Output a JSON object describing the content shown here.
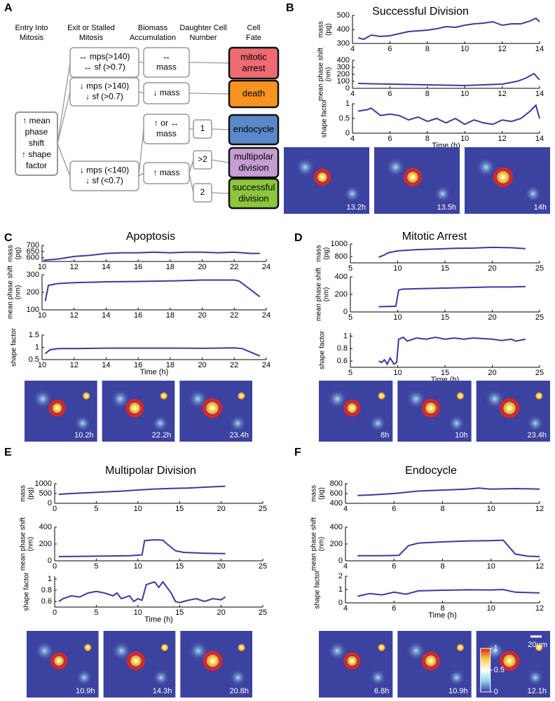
{
  "diagram": {
    "panel": "A",
    "headers": [
      [
        "Entry Into",
        "Mitosis"
      ],
      [
        "Exit or Stalled",
        "Mitosis"
      ],
      [
        "Biomass",
        "Accumulation"
      ],
      [
        "Daughter Cell",
        "Number"
      ],
      [
        "Cell",
        "Fate"
      ]
    ],
    "entry": [
      "↑ mean",
      "phase",
      "shift",
      "↑ shape",
      "factor"
    ],
    "exit": [
      [
        "↔ mps(>140)",
        "↔ sf (>0.7)"
      ],
      [
        "↓ mps (>140)",
        "↓ sf (>0.7)"
      ],
      [
        "↓ mps (<140)",
        "↓ sf (<0.7)"
      ]
    ],
    "biomass": [
      [
        "↔",
        "mass"
      ],
      [
        "↓ mass"
      ],
      [
        "↑ or ↔",
        "mass"
      ],
      [
        "↑ mass"
      ]
    ],
    "daughters": [
      "1",
      ">2",
      "2"
    ],
    "fates": [
      {
        "lines": [
          "mitotic",
          "arrest"
        ],
        "color": "#ee6b74"
      },
      {
        "lines": [
          "death"
        ],
        "color": "#f7931e"
      },
      {
        "lines": [
          "endocycle"
        ],
        "color": "#5b88c8"
      },
      {
        "lines": [
          "multipolar",
          "division"
        ],
        "color": "#c59fd4"
      },
      {
        "lines": [
          "successful",
          "division"
        ],
        "color": "#8cc63e"
      }
    ]
  },
  "chart_data": [
    {
      "type": "line",
      "panel": "B",
      "title": "Successful Division",
      "xlabel": "Time (h)",
      "color": "#3b3b9c",
      "xlim": [
        4,
        14
      ],
      "xticks": [
        4,
        6,
        8,
        10,
        12,
        14
      ],
      "images": [
        "13.2h",
        "13.5h",
        "14h"
      ],
      "subplots": [
        {
          "ylabel": [
            "mass",
            "(pg)"
          ],
          "ylim": [
            300,
            500
          ],
          "yticks": [
            300,
            400,
            500
          ],
          "x": [
            4.3,
            4.6,
            5,
            5.5,
            6,
            6.5,
            7,
            7.5,
            8,
            8.5,
            9,
            9.5,
            10,
            10.5,
            11,
            11.5,
            12,
            12.5,
            13,
            13.5,
            13.8,
            14
          ],
          "values": [
            340,
            330,
            360,
            350,
            355,
            370,
            385,
            390,
            395,
            405,
            420,
            415,
            430,
            440,
            445,
            455,
            430,
            440,
            440,
            460,
            480,
            455
          ]
        },
        {
          "ylabel": [
            "mean phase shift",
            "(nm)"
          ],
          "ylim": [
            0,
            400
          ],
          "yticks": [
            0,
            100,
            200,
            300,
            400
          ],
          "x": [
            4.3,
            5,
            6,
            7,
            8,
            9,
            10,
            11,
            12,
            12.8,
            13.3,
            13.7,
            14
          ],
          "values": [
            70,
            65,
            60,
            55,
            50,
            45,
            40,
            50,
            60,
            100,
            150,
            210,
            120
          ]
        },
        {
          "ylabel": [
            "shape factor"
          ],
          "ylim": [
            0,
            1
          ],
          "yticks": [
            0,
            0.5,
            1
          ],
          "x": [
            4.3,
            4.8,
            5,
            5.5,
            6,
            6.5,
            7,
            7.5,
            8,
            8.5,
            9,
            9.5,
            10,
            10.5,
            11,
            11.5,
            12,
            12.5,
            13,
            13.5,
            13.8,
            14
          ],
          "values": [
            0.75,
            0.8,
            0.85,
            0.6,
            0.65,
            0.6,
            0.45,
            0.55,
            0.4,
            0.5,
            0.35,
            0.5,
            0.3,
            0.45,
            0.35,
            0.3,
            0.45,
            0.4,
            0.5,
            0.75,
            0.95,
            0.5
          ]
        }
      ]
    },
    {
      "type": "line",
      "panel": "C",
      "title": "Apoptosis",
      "xlabel": "Time (h)",
      "color": "#3b3b9c",
      "xlim": [
        10,
        24
      ],
      "xticks": [
        10,
        12,
        14,
        16,
        18,
        20,
        22,
        24
      ],
      "images": [
        "10.2h",
        "22.2h",
        "23.4h"
      ],
      "subplots": [
        {
          "ylabel": [
            "mass",
            "(pg)"
          ],
          "ylim": [
            570,
            700
          ],
          "yticks": [
            600,
            650,
            700
          ],
          "x": [
            10.1,
            11,
            12,
            13,
            14,
            15,
            16,
            17,
            18,
            19,
            20,
            21,
            22,
            23,
            23.6
          ],
          "values": [
            580,
            590,
            610,
            620,
            635,
            640,
            640,
            645,
            640,
            645,
            645,
            640,
            645,
            635,
            635
          ]
        },
        {
          "ylabel": [
            "mean phase shift",
            "(nm)"
          ],
          "ylim": [
            100,
            300
          ],
          "yticks": [
            100,
            200,
            300
          ],
          "x": [
            10.2,
            10.4,
            11,
            12,
            14,
            16,
            18,
            20,
            22,
            22.3,
            23.6
          ],
          "values": [
            150,
            240,
            250,
            255,
            260,
            262,
            265,
            270,
            270,
            265,
            175
          ]
        },
        {
          "ylabel": [
            "shape factor"
          ],
          "ylim": [
            0.5,
            1.5
          ],
          "yticks": [
            0.5,
            1,
            1.5
          ],
          "x": [
            10.2,
            10.5,
            11,
            12,
            14,
            16,
            18,
            20,
            22,
            22.5,
            23.6
          ],
          "values": [
            0.75,
            0.9,
            0.95,
            0.95,
            0.97,
            0.97,
            0.97,
            0.96,
            0.98,
            0.95,
            0.65
          ]
        }
      ]
    },
    {
      "type": "line",
      "panel": "D",
      "title": "Mitotic Arrest",
      "xlabel": "Time (h)",
      "color": "#3b3b9c",
      "xlim": [
        5,
        25
      ],
      "xticks": [
        5,
        10,
        15,
        20,
        25
      ],
      "images": [
        "8h",
        "10h",
        "23.4h"
      ],
      "subplots": [
        {
          "ylabel": [
            "mass",
            "(pg)"
          ],
          "ylim": [
            700,
            1000
          ],
          "yticks": [
            800,
            1000
          ],
          "x": [
            8,
            8.5,
            9,
            10,
            11,
            12,
            14,
            16,
            18,
            20,
            22,
            23.5
          ],
          "values": [
            790,
            820,
            860,
            890,
            900,
            910,
            920,
            930,
            935,
            945,
            940,
            925
          ]
        },
        {
          "ylabel": [
            "mean phase shift",
            "(nm)"
          ],
          "ylim": [
            0,
            400
          ],
          "yticks": [
            0,
            200,
            400
          ],
          "x": [
            8,
            9.8,
            10.1,
            10.5,
            12,
            14,
            16,
            18,
            20,
            22,
            23.5
          ],
          "values": [
            60,
            65,
            250,
            260,
            265,
            270,
            275,
            280,
            285,
            285,
            290
          ]
        },
        {
          "ylabel": [
            "shape factor"
          ],
          "ylim": [
            0.5,
            1.05
          ],
          "yticks": [
            0.6,
            0.8,
            1
          ],
          "x": [
            8,
            8.3,
            8.6,
            8.9,
            9.2,
            9.6,
            9.9,
            10.1,
            10.6,
            11,
            12,
            13,
            14,
            15,
            16,
            17,
            18,
            19,
            20,
            21,
            22,
            22.5,
            23.5
          ],
          "values": [
            0.6,
            0.58,
            0.62,
            0.55,
            0.65,
            0.55,
            0.58,
            0.95,
            0.98,
            0.92,
            0.97,
            0.95,
            0.98,
            0.95,
            0.97,
            0.95,
            0.97,
            0.96,
            0.95,
            0.93,
            0.95,
            0.92,
            0.95
          ]
        }
      ]
    },
    {
      "type": "line",
      "panel": "E",
      "title": "Multipolar Division",
      "xlabel": "Time (h)",
      "color": "#3b3b9c",
      "xlim": [
        0,
        25
      ],
      "xticks": [
        0,
        5,
        10,
        15,
        20,
        25
      ],
      "images": [
        "10.9h",
        "14.3h",
        "20.8h"
      ],
      "subplots": [
        {
          "ylabel": [
            "mass",
            "(pg)"
          ],
          "ylim": [
            0,
            1000
          ],
          "yticks": [
            0,
            500,
            1000
          ],
          "x": [
            0.5,
            2,
            4,
            6,
            8,
            10,
            12,
            14,
            16,
            18,
            20.5
          ],
          "values": [
            460,
            500,
            540,
            580,
            620,
            680,
            730,
            760,
            780,
            820,
            870
          ]
        },
        {
          "ylabel": [
            "mean phase shift",
            "(nm)"
          ],
          "ylim": [
            0,
            400
          ],
          "yticks": [
            0,
            200,
            400
          ],
          "x": [
            0.5,
            5,
            9,
            10.5,
            10.8,
            12,
            13,
            13.5,
            14.5,
            15.5,
            18,
            20.5
          ],
          "values": [
            50,
            55,
            60,
            70,
            240,
            250,
            245,
            200,
            120,
            100,
            90,
            85
          ]
        },
        {
          "ylabel": [
            "shape factor"
          ],
          "ylim": [
            0.5,
            1.05
          ],
          "yticks": [
            0.6,
            0.8,
            1
          ],
          "x": [
            0.5,
            1,
            2,
            3,
            4,
            5,
            6,
            7,
            7.5,
            8,
            9,
            9.5,
            10,
            10.5,
            11,
            12,
            12.5,
            13,
            13.5,
            14,
            14.5,
            15,
            16,
            17,
            18,
            19,
            20,
            20.5
          ],
          "values": [
            0.6,
            0.65,
            0.7,
            0.68,
            0.75,
            0.78,
            0.75,
            0.7,
            0.75,
            0.65,
            0.7,
            0.6,
            0.65,
            0.62,
            0.9,
            0.95,
            0.85,
            0.95,
            0.85,
            0.75,
            0.6,
            0.58,
            0.62,
            0.65,
            0.6,
            0.65,
            0.63,
            0.68
          ]
        }
      ]
    },
    {
      "type": "line",
      "panel": "F",
      "title": "Endocycle",
      "xlabel": "Time (h)",
      "color": "#3b3b9c",
      "xlim": [
        4,
        12
      ],
      "xticks": [
        4,
        6,
        8,
        10,
        12
      ],
      "images": [
        "6.8h",
        "10.9h",
        "12.1h"
      ],
      "scale_bar": "20µm",
      "colorbar_ticks": [
        0,
        0.5,
        1
      ],
      "subplots": [
        {
          "ylabel": [
            "mass",
            "(pg)"
          ],
          "ylim": [
            400,
            800
          ],
          "yticks": [
            400,
            600,
            800
          ],
          "x": [
            4.5,
            5,
            6,
            7,
            8,
            9,
            9.5,
            10,
            11,
            12
          ],
          "values": [
            560,
            570,
            600,
            650,
            670,
            690,
            710,
            690,
            700,
            690
          ]
        },
        {
          "ylabel": [
            "mean phase shift",
            "(nm)"
          ],
          "ylim": [
            0,
            400
          ],
          "yticks": [
            0,
            200,
            400
          ],
          "x": [
            4.5,
            5.5,
            6.2,
            6.6,
            7,
            8,
            9,
            10,
            10.5,
            11,
            11.5,
            12
          ],
          "values": [
            60,
            60,
            65,
            180,
            210,
            225,
            235,
            240,
            245,
            80,
            55,
            50
          ]
        },
        {
          "ylabel": [
            "shape factor"
          ],
          "ylim": [
            0,
            2
          ],
          "yticks": [
            0,
            1,
            2
          ],
          "x": [
            4.5,
            5,
            5.5,
            6,
            6.5,
            7,
            8,
            9,
            10,
            10.5,
            11,
            12
          ],
          "values": [
            0.5,
            0.7,
            0.6,
            0.8,
            0.65,
            0.9,
            0.95,
            0.98,
            0.97,
            1,
            0.8,
            0.75
          ]
        }
      ]
    }
  ]
}
